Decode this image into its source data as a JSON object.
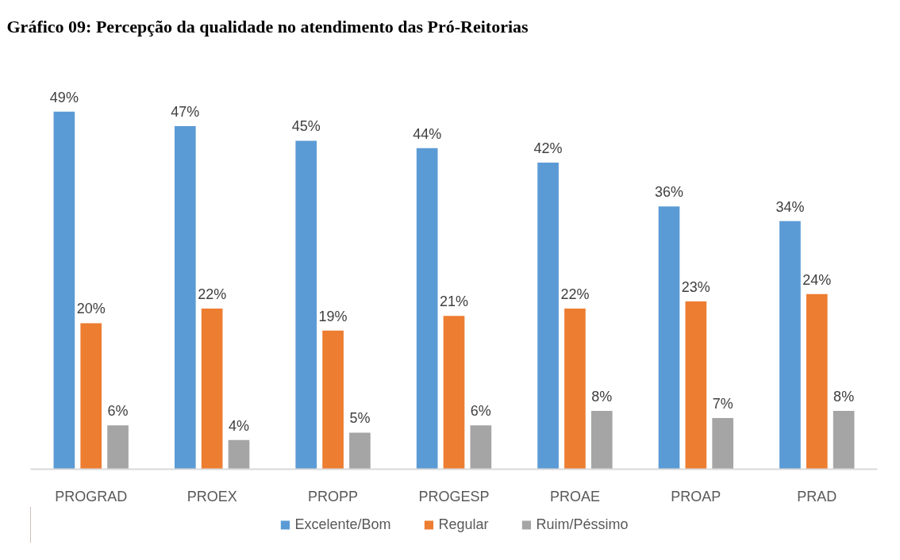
{
  "chart_data": {
    "type": "bar",
    "title": "Gráfico 09: Percepção da qualidade no atendimento das Pró-Reitorias",
    "categories": [
      "PROGRAD",
      "PROEX",
      "PROPP",
      "PROGESP",
      "PROAE",
      "PROAP",
      "PRAD"
    ],
    "series": [
      {
        "name": "Excelente/Bom",
        "color": "#5b9bd5",
        "values": [
          49,
          47,
          45,
          44,
          42,
          36,
          34
        ],
        "value_labels": [
          "49%",
          "47%",
          "45%",
          "44%",
          "42%",
          "36%",
          "34%"
        ]
      },
      {
        "name": "Regular",
        "color": "#ed7d31",
        "values": [
          20,
          22,
          19,
          21,
          22,
          23,
          24
        ],
        "value_labels": [
          "20%",
          "22%",
          "19%",
          "21%",
          "22%",
          "23%",
          "24%"
        ]
      },
      {
        "name": "Ruim/Péssimo",
        "color": "#a5a5a5",
        "values": [
          6,
          4,
          5,
          6,
          8,
          7,
          8
        ],
        "value_labels": [
          "6%",
          "4%",
          "5%",
          "6%",
          "8%",
          "7%",
          "8%"
        ]
      }
    ],
    "legend": "bottom"
  }
}
